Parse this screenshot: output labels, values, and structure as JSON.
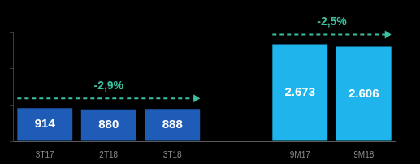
{
  "chart_data": {
    "type": "bar",
    "categories": [
      "3T17",
      "2T18",
      "3T18",
      null,
      "9M17",
      "9M18"
    ],
    "values": [
      914,
      880,
      888,
      null,
      2673,
      2606
    ],
    "value_labels": [
      "914",
      "880",
      "888",
      null,
      "2.673",
      "2.606"
    ],
    "colors": [
      "#1f5cb8",
      "#1f5cb8",
      "#1f5cb8",
      null,
      "#1fb5ec",
      "#1fb5ec"
    ],
    "ylim": [
      0,
      3000
    ],
    "yticks": [
      0,
      1000,
      2000,
      3000
    ],
    "grid": false,
    "data_labels": true,
    "tick_labels": "x",
    "annotations": [
      {
        "text": "-2,9%",
        "from": "3T17",
        "to": "3T18"
      },
      {
        "text": "-2,5%",
        "from": "9M17",
        "to": "9M18"
      }
    ]
  }
}
